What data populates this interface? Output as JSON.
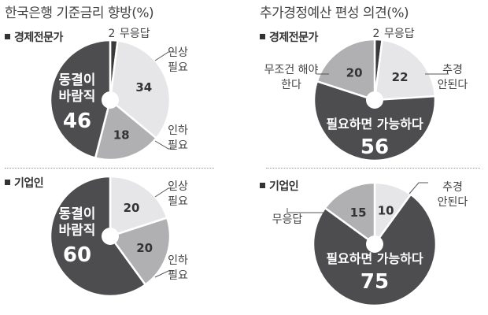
{
  "titles": {
    "left": "한국은행 기준금리 향방(%)",
    "right": "추가경정예산 편성 의견(%)"
  },
  "groups": {
    "experts": "경제전문가",
    "companies": "기업인"
  },
  "colors": {
    "dark": "#4d4d4f",
    "mid": "#b0b0b2",
    "light": "#e6e6e8",
    "black": "#3a3a3a"
  },
  "chart_data": [
    {
      "type": "pie",
      "title": "한국은행 기준금리 향방(%)",
      "group": "경제전문가",
      "slices": [
        {
          "label": "무응답",
          "value": 2
        },
        {
          "label": "인상 필요",
          "value": 34
        },
        {
          "label": "인하 필요",
          "value": 18
        },
        {
          "label": "동결이 바람직",
          "value": 46
        }
      ]
    },
    {
      "type": "pie",
      "title": "한국은행 기준금리 향방(%)",
      "group": "기업인",
      "slices": [
        {
          "label": "인상 필요",
          "value": 20
        },
        {
          "label": "인하 필요",
          "value": 20
        },
        {
          "label": "동결이 바람직",
          "value": 60
        }
      ]
    },
    {
      "type": "pie",
      "title": "추가경정예산 편성 의견(%)",
      "group": "경제전문가",
      "slices": [
        {
          "label": "무응답",
          "value": 2
        },
        {
          "label": "추경 안된다",
          "value": 22
        },
        {
          "label": "필요하면 가능하다",
          "value": 56
        },
        {
          "label": "무조건 해야 한다",
          "value": 20
        }
      ]
    },
    {
      "type": "pie",
      "title": "추가경정예산 편성 의견(%)",
      "group": "기업인",
      "slices": [
        {
          "label": "추경 안된다",
          "value": 10
        },
        {
          "label": "필요하면 가능하다",
          "value": 75
        },
        {
          "label": "무응답",
          "value": 15
        }
      ]
    }
  ]
}
